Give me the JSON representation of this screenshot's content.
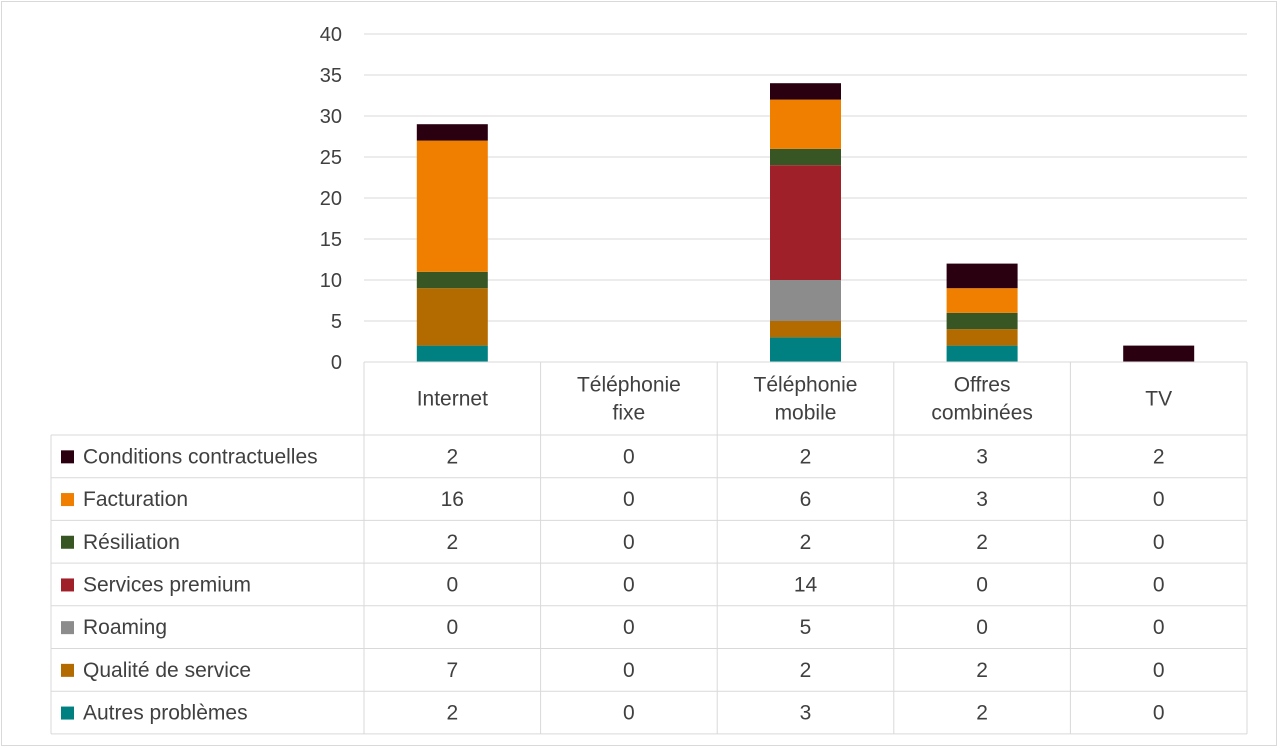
{
  "chart_data": {
    "type": "bar",
    "stacked": true,
    "categories": [
      [
        "Internet"
      ],
      [
        "Téléphonie",
        "fixe"
      ],
      [
        "Téléphonie",
        "mobile"
      ],
      [
        "Offres",
        "combinées"
      ],
      [
        "TV"
      ]
    ],
    "y_ticks": [
      "0",
      "5",
      "10",
      "15",
      "20",
      "25",
      "30",
      "35",
      "40"
    ],
    "ylim": [
      0,
      40
    ],
    "grid": true,
    "legend": "data-table-left",
    "series": [
      {
        "name": "Autres problèmes",
        "color": "#008080",
        "values": [
          2,
          0,
          3,
          2,
          0
        ]
      },
      {
        "name": "Qualité de service",
        "color": "#B36B00",
        "values": [
          7,
          0,
          2,
          2,
          0
        ]
      },
      {
        "name": "Roaming",
        "color": "#8C8C8C",
        "values": [
          0,
          0,
          5,
          0,
          0
        ]
      },
      {
        "name": "Services premium",
        "color": "#A0202A",
        "values": [
          0,
          0,
          14,
          0,
          0
        ]
      },
      {
        "name": "Résiliation",
        "color": "#375623",
        "values": [
          2,
          0,
          2,
          2,
          0
        ]
      },
      {
        "name": "Facturation",
        "color": "#F07F00",
        "values": [
          16,
          0,
          6,
          3,
          0
        ]
      },
      {
        "name": "Conditions contractuelles",
        "color": "#2A0010",
        "values": [
          2,
          0,
          2,
          3,
          2
        ]
      }
    ]
  }
}
